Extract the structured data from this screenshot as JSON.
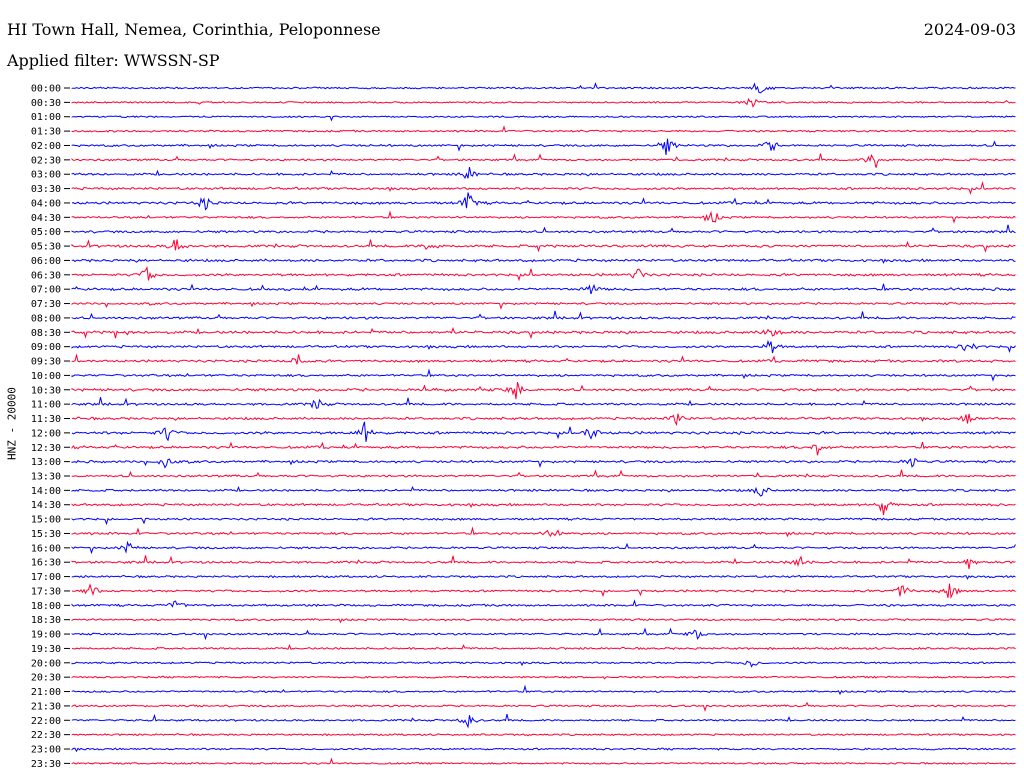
{
  "header": {
    "station": "HI Town Hall, Nemea, Corinthia, Peloponnese",
    "date": "2024-09-03",
    "filter_text": "Applied filter: WWSSN-SP"
  },
  "colors": {
    "trace_a": "#0000ff",
    "trace_b": "#ff0033",
    "background": "#ffffff",
    "text": "#000000"
  },
  "chart_data": {
    "type": "line",
    "title": "HI Town Hall, Nemea, Corinthia, Peloponnese",
    "subtitle": "Applied filter: WWSSN-SP",
    "ylabel": "HNZ - 20000",
    "xlabel": "",
    "grid": false,
    "legend": "none",
    "row_labels": [
      "00:00",
      "00:30",
      "01:00",
      "01:30",
      "02:00",
      "02:30",
      "03:00",
      "03:30",
      "04:00",
      "04:30",
      "05:00",
      "05:30",
      "06:00",
      "06:30",
      "07:00",
      "07:30",
      "08:00",
      "08:30",
      "09:00",
      "09:30",
      "10:00",
      "10:30",
      "11:00",
      "11:30",
      "12:00",
      "12:30",
      "13:00",
      "13:30",
      "14:00",
      "14:30",
      "15:00",
      "15:30",
      "16:00",
      "16:30",
      "17:00",
      "17:30",
      "18:00",
      "18:30",
      "19:00",
      "19:30",
      "20:00",
      "20:30",
      "21:00",
      "21:30",
      "22:00",
      "22:30",
      "23:00",
      "23:30"
    ],
    "row_colors": [
      "#0000ff",
      "#ff0033"
    ],
    "activity": [
      0.25,
      0.2,
      0.15,
      0.3,
      0.45,
      0.4,
      0.5,
      0.6,
      0.7,
      0.4,
      0.6,
      0.65,
      0.7,
      0.7,
      0.75,
      0.45,
      0.6,
      0.8,
      0.6,
      0.65,
      0.5,
      0.75,
      0.55,
      0.6,
      0.8,
      0.7,
      0.6,
      0.45,
      0.5,
      0.6,
      0.45,
      0.55,
      0.5,
      0.5,
      0.4,
      0.5,
      0.45,
      0.35,
      0.35,
      0.35,
      0.3,
      0.25,
      0.3,
      0.3,
      0.3,
      0.25,
      0.3,
      0.2
    ],
    "events": [
      {
        "row": 0,
        "t": 0.73,
        "amp": 0.8
      },
      {
        "row": 1,
        "t": 0.72,
        "amp": 0.5
      },
      {
        "row": 4,
        "t": 0.63,
        "amp": 1.0
      },
      {
        "row": 4,
        "t": 0.74,
        "amp": 0.6
      },
      {
        "row": 5,
        "t": 0.85,
        "amp": 0.9
      },
      {
        "row": 6,
        "t": 0.42,
        "amp": 0.7
      },
      {
        "row": 8,
        "t": 0.42,
        "amp": 0.9
      },
      {
        "row": 8,
        "t": 0.14,
        "amp": 0.6
      },
      {
        "row": 9,
        "t": 0.68,
        "amp": 0.6
      },
      {
        "row": 11,
        "t": 0.11,
        "amp": 0.7
      },
      {
        "row": 11,
        "t": 0.38,
        "amp": 0.6
      },
      {
        "row": 13,
        "t": 0.08,
        "amp": 0.7
      },
      {
        "row": 13,
        "t": 0.6,
        "amp": 0.6
      },
      {
        "row": 14,
        "t": 0.55,
        "amp": 0.5
      },
      {
        "row": 17,
        "t": 0.74,
        "amp": 0.7
      },
      {
        "row": 18,
        "t": 0.74,
        "amp": 0.7
      },
      {
        "row": 18,
        "t": 0.95,
        "amp": 0.7
      },
      {
        "row": 19,
        "t": 0.24,
        "amp": 0.6
      },
      {
        "row": 21,
        "t": 0.47,
        "amp": 0.9
      },
      {
        "row": 22,
        "t": 0.26,
        "amp": 0.6
      },
      {
        "row": 23,
        "t": 0.64,
        "amp": 0.6
      },
      {
        "row": 23,
        "t": 0.95,
        "amp": 0.5
      },
      {
        "row": 24,
        "t": 0.31,
        "amp": 0.9
      },
      {
        "row": 24,
        "t": 0.1,
        "amp": 0.7
      },
      {
        "row": 24,
        "t": 0.55,
        "amp": 0.7
      },
      {
        "row": 25,
        "t": 0.79,
        "amp": 0.6
      },
      {
        "row": 26,
        "t": 0.1,
        "amp": 0.6
      },
      {
        "row": 26,
        "t": 0.89,
        "amp": 0.5
      },
      {
        "row": 28,
        "t": 0.73,
        "amp": 0.6
      },
      {
        "row": 29,
        "t": 0.86,
        "amp": 0.8
      },
      {
        "row": 31,
        "t": 0.51,
        "amp": 0.8
      },
      {
        "row": 32,
        "t": 0.06,
        "amp": 0.5
      },
      {
        "row": 33,
        "t": 0.77,
        "amp": 0.9
      },
      {
        "row": 33,
        "t": 0.95,
        "amp": 0.6
      },
      {
        "row": 35,
        "t": 0.02,
        "amp": 0.7
      },
      {
        "row": 35,
        "t": 0.88,
        "amp": 0.7
      },
      {
        "row": 35,
        "t": 0.93,
        "amp": 0.8
      },
      {
        "row": 36,
        "t": 0.11,
        "amp": 0.5
      },
      {
        "row": 38,
        "t": 0.66,
        "amp": 0.6
      },
      {
        "row": 40,
        "t": 0.72,
        "amp": 0.4
      },
      {
        "row": 44,
        "t": 0.42,
        "amp": 0.7
      }
    ]
  }
}
